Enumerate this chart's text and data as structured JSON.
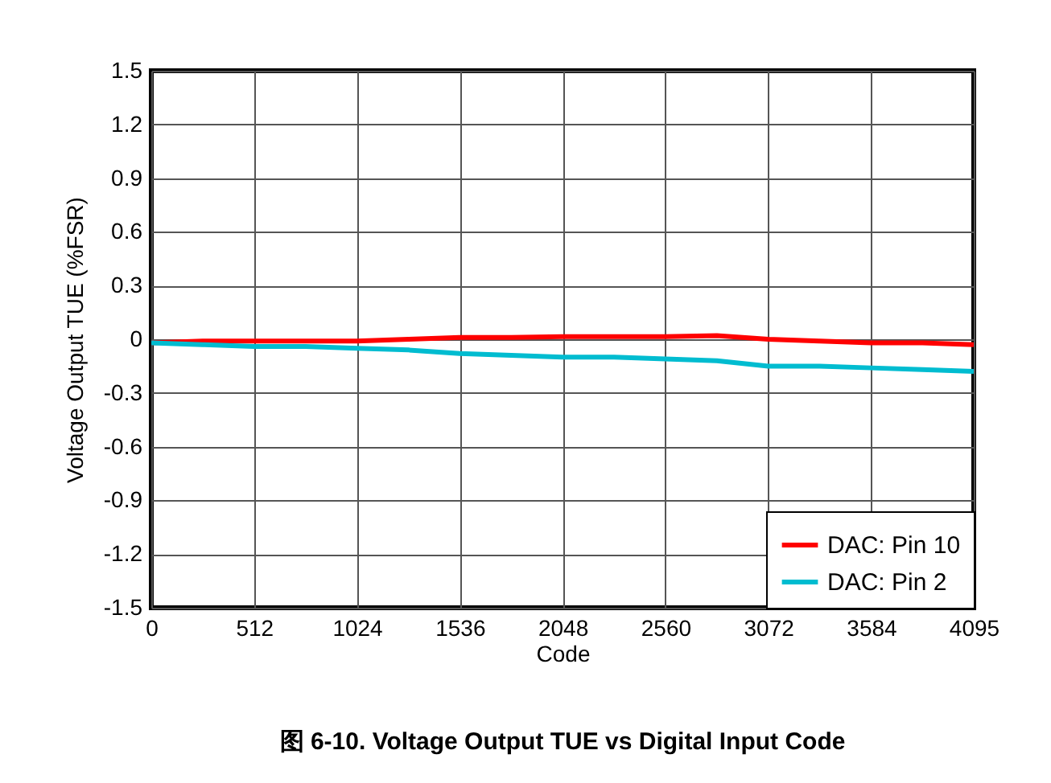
{
  "chart_data": {
    "type": "line",
    "title": "图 6-10. Voltage Output TUE vs Digital Input Code",
    "xlabel": "Code",
    "ylabel": "Voltage Output TUE (%FSR)",
    "x": [
      0,
      256,
      512,
      768,
      1024,
      1280,
      1536,
      1792,
      2048,
      2304,
      2560,
      2816,
      3072,
      3328,
      3584,
      3840,
      4095
    ],
    "series": [
      {
        "name": "DAC: Pin 10",
        "color": "#ff0000",
        "values": [
          -0.02,
          -0.01,
          -0.01,
          -0.01,
          -0.01,
          0,
          0.01,
          0.01,
          0.015,
          0.015,
          0.015,
          0.02,
          0,
          -0.01,
          -0.02,
          -0.02,
          -0.03
        ]
      },
      {
        "name": "DAC: Pin 2",
        "color": "#00bcd0",
        "values": [
          -0.02,
          -0.03,
          -0.04,
          -0.04,
          -0.05,
          -0.06,
          -0.08,
          -0.09,
          -0.1,
          -0.1,
          -0.11,
          -0.12,
          -0.15,
          -0.15,
          -0.16,
          -0.17,
          -0.18
        ]
      }
    ],
    "xlim": [
      0,
      4095
    ],
    "xticks": [
      0,
      512,
      1024,
      1536,
      2048,
      2560,
      3072,
      3584,
      4095
    ],
    "ylim": [
      -1.5,
      1.5
    ],
    "yticks": [
      -1.5,
      -1.2,
      -0.9,
      -0.6,
      -0.3,
      0,
      0.3,
      0.6,
      0.9,
      1.2,
      1.5
    ],
    "grid": true,
    "legend": "bottom right",
    "line_style": "solid"
  }
}
